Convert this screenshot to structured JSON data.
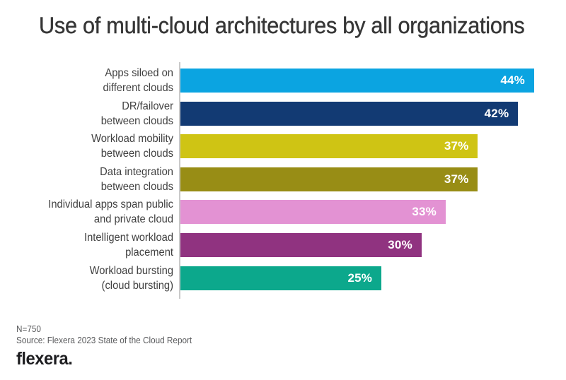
{
  "chart_data": {
    "type": "bar",
    "orientation": "horizontal",
    "title": "Use of multi-cloud architectures by all organizations",
    "categories": [
      "Apps siloed on\ndifferent clouds",
      "DR/failover\nbetween clouds",
      "Workload mobility\nbetween clouds",
      "Data integration\nbetween clouds",
      "Individual apps span public\nand private cloud",
      "Intelligent workload\nplacement",
      "Workload bursting\n(cloud bursting)"
    ],
    "values": [
      44,
      42,
      37,
      37,
      33,
      30,
      25
    ],
    "value_labels": [
      "44%",
      "42%",
      "37%",
      "37%",
      "33%",
      "30%",
      "25%"
    ],
    "bar_colors": [
      "#0ba4e1",
      "#123a73",
      "#cfc414",
      "#988d15",
      "#e392d3",
      "#903380",
      "#0ca88c"
    ],
    "value_label_color": "#ffffff",
    "xlabel": "",
    "ylabel": "",
    "xlim": [
      0,
      48
    ],
    "grid": false,
    "legend": false
  },
  "footer": {
    "sample_size": "N=750",
    "source": "Source: Flexera 2023 State of the Cloud Report",
    "logo_text": "flexera."
  }
}
